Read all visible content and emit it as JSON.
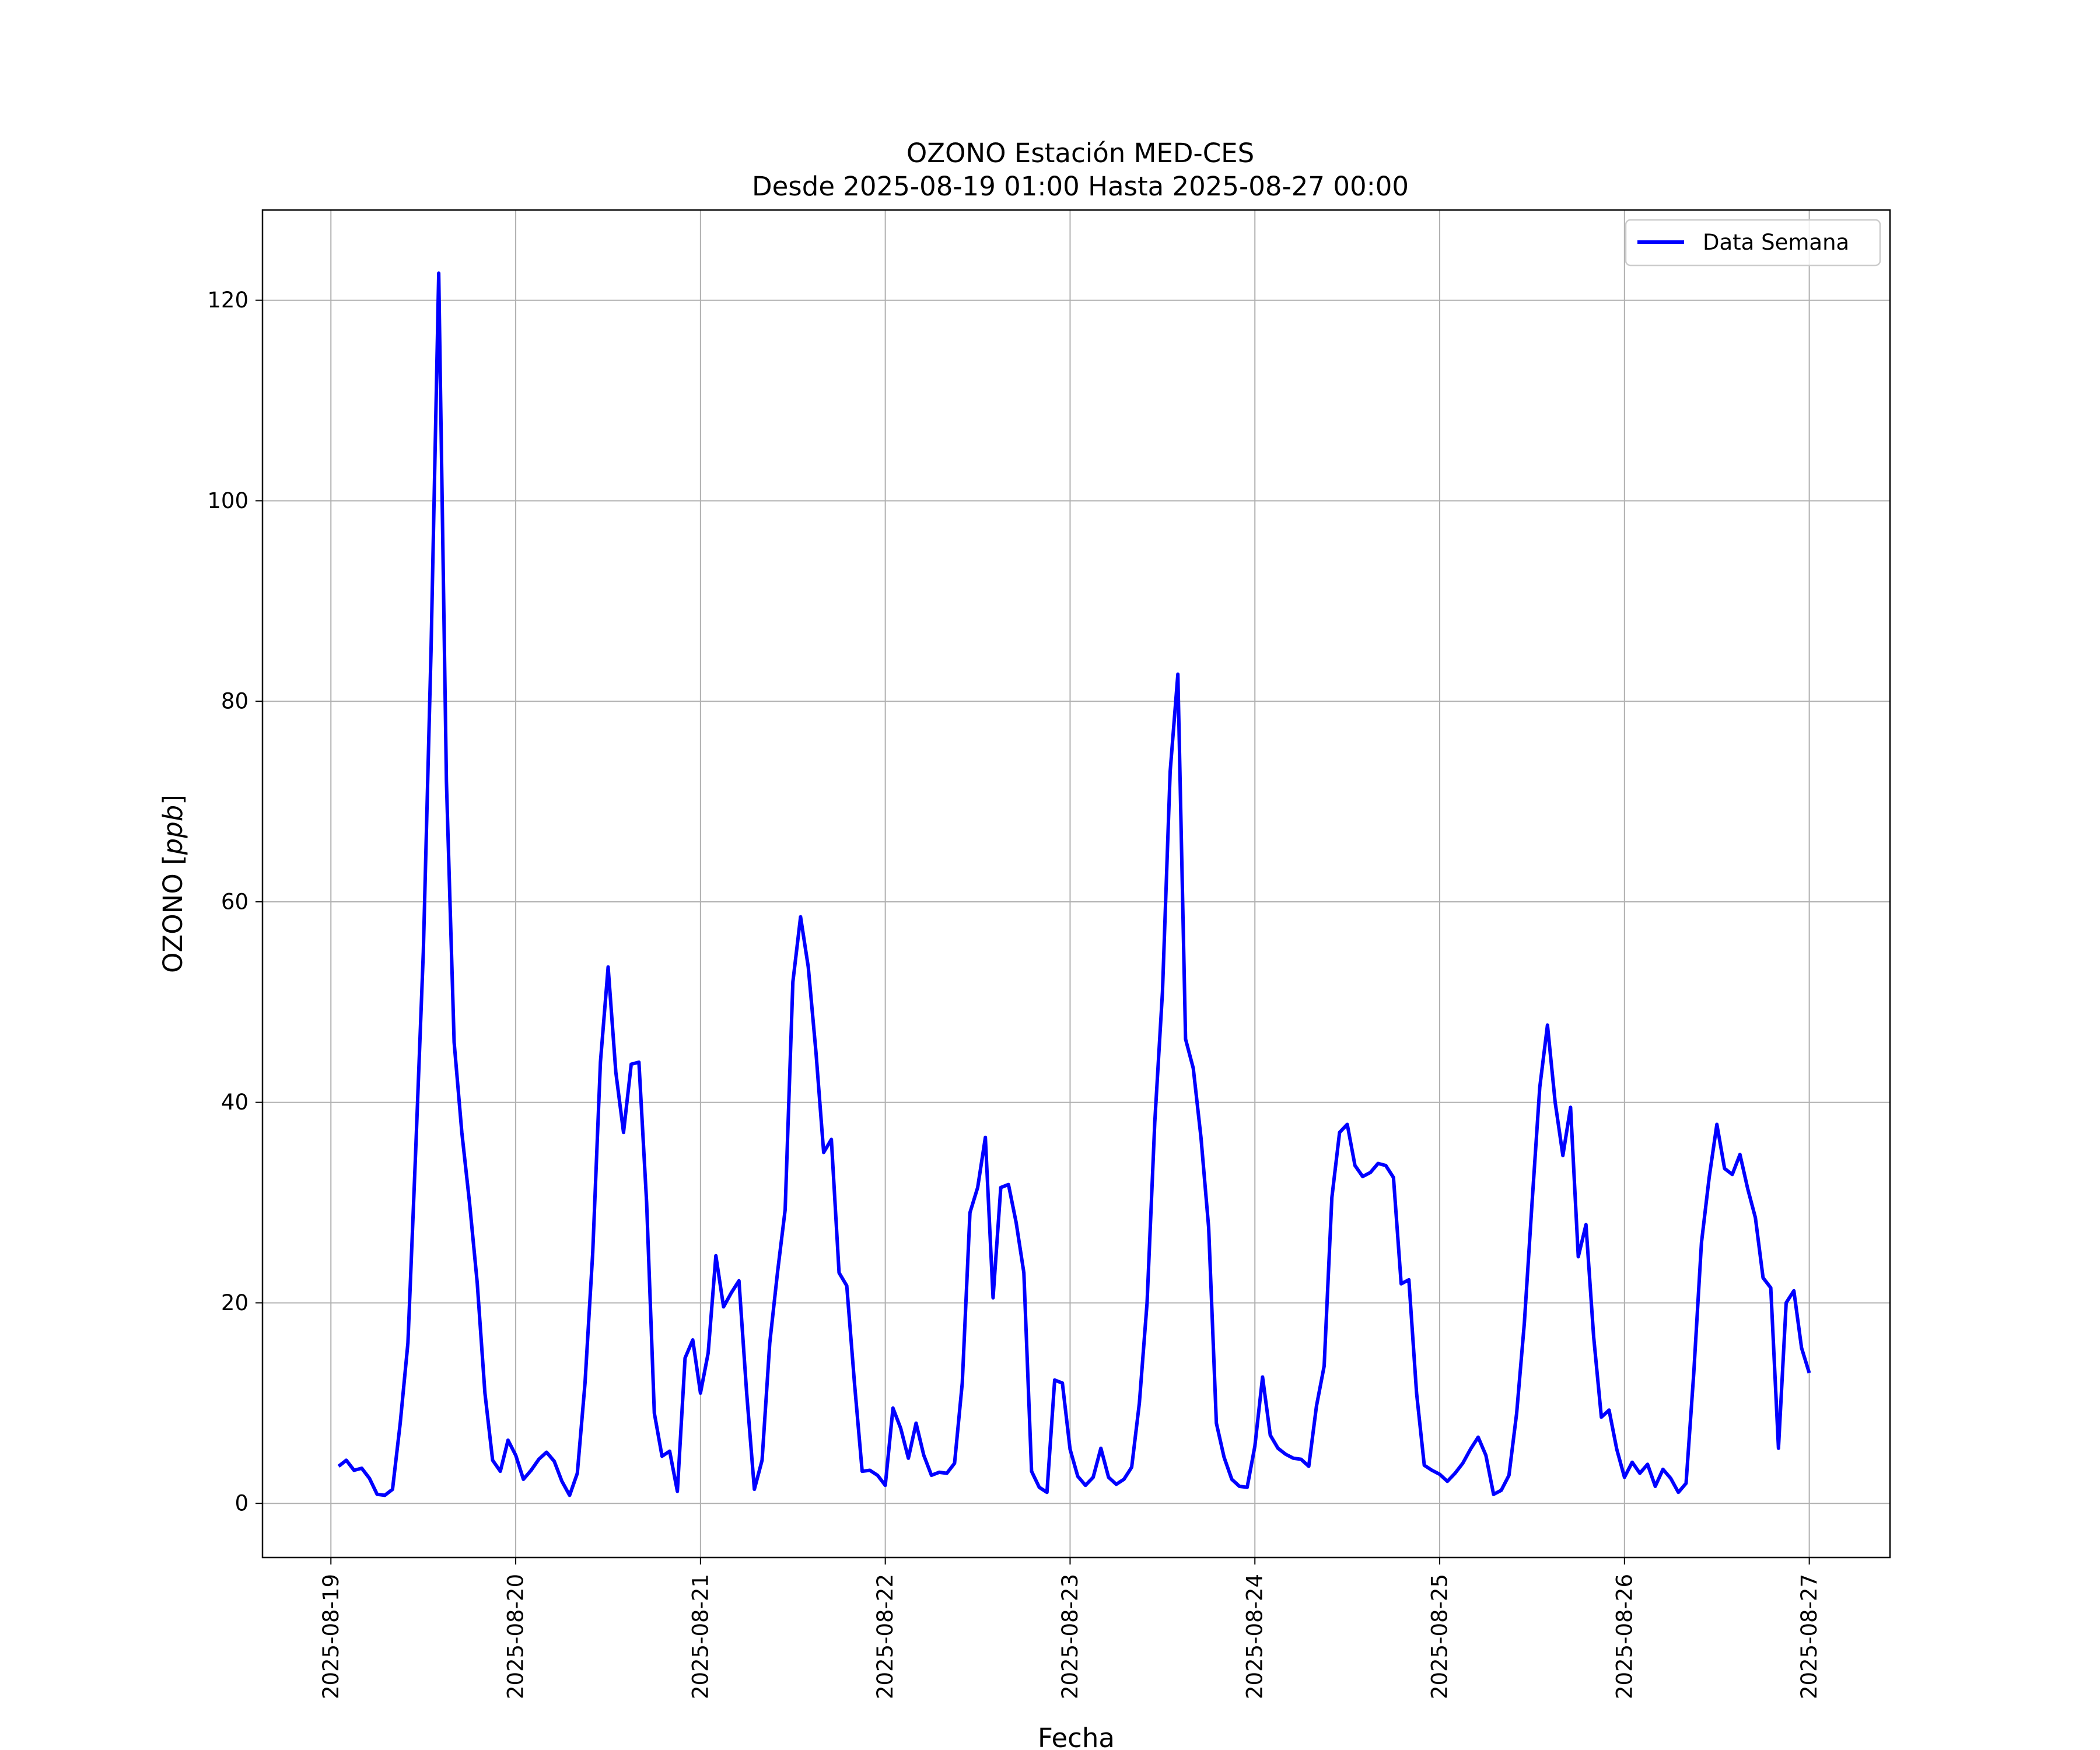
{
  "chart_data": {
    "type": "line",
    "title": "OZONO Estación MED-CES",
    "subtitle": "Desde 2025-08-19 01:00 Hasta 2025-08-27 00:00",
    "xlabel": "Fecha",
    "ylabel": "OZONO [ppb]",
    "xlim": [
      "2025-08-18 15:07",
      "2025-08-27 10:29"
    ],
    "ylim": [
      -5.4,
      129.0
    ],
    "grid": true,
    "legend_position": "top-right",
    "x_ticks": [
      "2025-08-19",
      "2025-08-20",
      "2025-08-21",
      "2025-08-22",
      "2025-08-23",
      "2025-08-24",
      "2025-08-25",
      "2025-08-26",
      "2025-08-27"
    ],
    "y_ticks": [
      0,
      20,
      40,
      60,
      80,
      100,
      120
    ],
    "series": [
      {
        "name": "Data Semana",
        "color": "#0000ff",
        "points": [
          [
            "2025-08-19 01:00",
            3.7
          ],
          [
            "2025-08-19 02:00",
            4.3
          ],
          [
            "2025-08-19 03:00",
            3.3
          ],
          [
            "2025-08-19 04:00",
            3.5
          ],
          [
            "2025-08-19 05:00",
            2.5
          ],
          [
            "2025-08-19 06:00",
            0.9
          ],
          [
            "2025-08-19 07:00",
            0.8
          ],
          [
            "2025-08-19 08:00",
            1.4
          ],
          [
            "2025-08-19 09:00",
            8.0
          ],
          [
            "2025-08-19 10:00",
            16.0
          ],
          [
            "2025-08-19 11:00",
            35.0
          ],
          [
            "2025-08-19 12:00",
            55.0
          ],
          [
            "2025-08-19 13:00",
            85.0
          ],
          [
            "2025-08-19 14:00",
            122.7
          ],
          [
            "2025-08-19 15:00",
            72.0
          ],
          [
            "2025-08-19 16:00",
            46.0
          ],
          [
            "2025-08-19 17:00",
            37.0
          ],
          [
            "2025-08-19 18:00",
            30.0
          ],
          [
            "2025-08-19 19:00",
            22.0
          ],
          [
            "2025-08-19 20:00",
            11.0
          ],
          [
            "2025-08-19 21:00",
            4.3
          ],
          [
            "2025-08-19 22:00",
            3.2
          ],
          [
            "2025-08-19 23:00",
            6.3
          ],
          [
            "2025-08-20 00:00",
            4.8
          ],
          [
            "2025-08-20 01:00",
            2.4
          ],
          [
            "2025-08-20 02:00",
            3.3
          ],
          [
            "2025-08-20 03:00",
            4.4
          ],
          [
            "2025-08-20 04:00",
            5.1
          ],
          [
            "2025-08-20 05:00",
            4.2
          ],
          [
            "2025-08-20 06:00",
            2.2
          ],
          [
            "2025-08-20 07:00",
            0.8
          ],
          [
            "2025-08-20 08:00",
            3.0
          ],
          [
            "2025-08-20 09:00",
            12.0
          ],
          [
            "2025-08-20 10:00",
            25.0
          ],
          [
            "2025-08-20 11:00",
            44.0
          ],
          [
            "2025-08-20 12:00",
            53.5
          ],
          [
            "2025-08-20 13:00",
            43.0
          ],
          [
            "2025-08-20 14:00",
            37.0
          ],
          [
            "2025-08-20 15:00",
            43.8
          ],
          [
            "2025-08-20 16:00",
            44.0
          ],
          [
            "2025-08-20 17:00",
            30.0
          ],
          [
            "2025-08-20 18:00",
            9.0
          ],
          [
            "2025-08-20 19:00",
            4.7
          ],
          [
            "2025-08-20 20:00",
            5.2
          ],
          [
            "2025-08-20 21:00",
            1.2
          ],
          [
            "2025-08-20 22:00",
            14.5
          ],
          [
            "2025-08-20 23:00",
            16.3
          ],
          [
            "2025-08-21 00:00",
            11.0
          ],
          [
            "2025-08-21 01:00",
            15.0
          ],
          [
            "2025-08-21 02:00",
            24.7
          ],
          [
            "2025-08-21 03:00",
            19.6
          ],
          [
            "2025-08-21 04:00",
            21.0
          ],
          [
            "2025-08-21 05:00",
            22.2
          ],
          [
            "2025-08-21 06:00",
            11.0
          ],
          [
            "2025-08-21 07:00",
            1.4
          ],
          [
            "2025-08-21 08:00",
            4.3
          ],
          [
            "2025-08-21 09:00",
            16.0
          ],
          [
            "2025-08-21 10:00",
            23.0
          ],
          [
            "2025-08-21 11:00",
            29.3
          ],
          [
            "2025-08-21 12:00",
            52.0
          ],
          [
            "2025-08-21 13:00",
            58.5
          ],
          [
            "2025-08-21 14:00",
            53.5
          ],
          [
            "2025-08-21 15:00",
            45.0
          ],
          [
            "2025-08-21 16:00",
            35.0
          ],
          [
            "2025-08-21 17:00",
            36.3
          ],
          [
            "2025-08-21 18:00",
            23.0
          ],
          [
            "2025-08-21 19:00",
            21.7
          ],
          [
            "2025-08-21 20:00",
            12.0
          ],
          [
            "2025-08-21 21:00",
            3.2
          ],
          [
            "2025-08-21 22:00",
            3.3
          ],
          [
            "2025-08-21 23:00",
            2.8
          ],
          [
            "2025-08-22 00:00",
            1.8
          ],
          [
            "2025-08-22 01:00",
            9.5
          ],
          [
            "2025-08-22 02:00",
            7.5
          ],
          [
            "2025-08-22 03:00",
            4.5
          ],
          [
            "2025-08-22 04:00",
            8.0
          ],
          [
            "2025-08-22 05:00",
            4.8
          ],
          [
            "2025-08-22 06:00",
            2.8
          ],
          [
            "2025-08-22 07:00",
            3.1
          ],
          [
            "2025-08-22 08:00",
            3.0
          ],
          [
            "2025-08-22 09:00",
            4.0
          ],
          [
            "2025-08-22 10:00",
            12.0
          ],
          [
            "2025-08-22 11:00",
            29.0
          ],
          [
            "2025-08-22 12:00",
            31.5
          ],
          [
            "2025-08-22 13:00",
            36.5
          ],
          [
            "2025-08-22 14:00",
            20.5
          ],
          [
            "2025-08-22 15:00",
            31.5
          ],
          [
            "2025-08-22 16:00",
            31.8
          ],
          [
            "2025-08-22 17:00",
            28.0
          ],
          [
            "2025-08-22 18:00",
            23.0
          ],
          [
            "2025-08-22 19:00",
            3.2
          ],
          [
            "2025-08-22 20:00",
            1.6
          ],
          [
            "2025-08-22 21:00",
            1.1
          ],
          [
            "2025-08-22 22:00",
            12.3
          ],
          [
            "2025-08-22 23:00",
            12.0
          ],
          [
            "2025-08-23 00:00",
            5.4
          ],
          [
            "2025-08-23 01:00",
            2.7
          ],
          [
            "2025-08-23 02:00",
            1.8
          ],
          [
            "2025-08-23 03:00",
            2.6
          ],
          [
            "2025-08-23 04:00",
            5.5
          ],
          [
            "2025-08-23 05:00",
            2.6
          ],
          [
            "2025-08-23 06:00",
            1.9
          ],
          [
            "2025-08-23 07:00",
            2.4
          ],
          [
            "2025-08-23 08:00",
            3.6
          ],
          [
            "2025-08-23 09:00",
            10.0
          ],
          [
            "2025-08-23 10:00",
            20.0
          ],
          [
            "2025-08-23 11:00",
            38.0
          ],
          [
            "2025-08-23 12:00",
            51.0
          ],
          [
            "2025-08-23 13:00",
            73.0
          ],
          [
            "2025-08-23 14:00",
            82.7
          ],
          [
            "2025-08-23 15:00",
            46.3
          ],
          [
            "2025-08-23 16:00",
            43.4
          ],
          [
            "2025-08-23 17:00",
            36.5
          ],
          [
            "2025-08-23 18:00",
            27.5
          ],
          [
            "2025-08-23 19:00",
            8.0
          ],
          [
            "2025-08-23 20:00",
            4.6
          ],
          [
            "2025-08-23 21:00",
            2.4
          ],
          [
            "2025-08-23 22:00",
            1.7
          ],
          [
            "2025-08-23 23:00",
            1.6
          ],
          [
            "2025-08-24 00:00",
            5.7
          ],
          [
            "2025-08-24 01:00",
            12.6
          ],
          [
            "2025-08-24 02:00",
            6.8
          ],
          [
            "2025-08-24 03:00",
            5.5
          ],
          [
            "2025-08-24 04:00",
            4.9
          ],
          [
            "2025-08-24 05:00",
            4.5
          ],
          [
            "2025-08-24 06:00",
            4.4
          ],
          [
            "2025-08-24 07:00",
            3.7
          ],
          [
            "2025-08-24 08:00",
            9.7
          ],
          [
            "2025-08-24 09:00",
            13.7
          ],
          [
            "2025-08-24 10:00",
            30.5
          ],
          [
            "2025-08-24 11:00",
            37.0
          ],
          [
            "2025-08-24 12:00",
            37.8
          ],
          [
            "2025-08-24 13:00",
            33.7
          ],
          [
            "2025-08-24 14:00",
            32.6
          ],
          [
            "2025-08-24 15:00",
            33.0
          ],
          [
            "2025-08-24 16:00",
            33.9
          ],
          [
            "2025-08-24 17:00",
            33.7
          ],
          [
            "2025-08-24 18:00",
            32.5
          ],
          [
            "2025-08-24 19:00",
            21.9
          ],
          [
            "2025-08-24 20:00",
            22.3
          ],
          [
            "2025-08-24 21:00",
            11.0
          ],
          [
            "2025-08-24 22:00",
            3.8
          ],
          [
            "2025-08-24 23:00",
            3.3
          ],
          [
            "2025-08-25 00:00",
            2.9
          ],
          [
            "2025-08-25 01:00",
            2.2
          ],
          [
            "2025-08-25 02:00",
            3.0
          ],
          [
            "2025-08-25 03:00",
            4.0
          ],
          [
            "2025-08-25 04:00",
            5.4
          ],
          [
            "2025-08-25 05:00",
            6.6
          ],
          [
            "2025-08-25 06:00",
            4.8
          ],
          [
            "2025-08-25 07:00",
            0.9
          ],
          [
            "2025-08-25 08:00",
            1.3
          ],
          [
            "2025-08-25 09:00",
            2.8
          ],
          [
            "2025-08-25 10:00",
            9.0
          ],
          [
            "2025-08-25 11:00",
            18.0
          ],
          [
            "2025-08-25 12:00",
            30.0
          ],
          [
            "2025-08-25 13:00",
            41.5
          ],
          [
            "2025-08-25 14:00",
            47.7
          ],
          [
            "2025-08-25 15:00",
            40.0
          ],
          [
            "2025-08-25 16:00",
            34.7
          ],
          [
            "2025-08-25 17:00",
            39.5
          ],
          [
            "2025-08-25 18:00",
            24.6
          ],
          [
            "2025-08-25 19:00",
            27.8
          ],
          [
            "2025-08-25 20:00",
            16.6
          ],
          [
            "2025-08-25 21:00",
            8.6
          ],
          [
            "2025-08-25 22:00",
            9.3
          ],
          [
            "2025-08-25 23:00",
            5.4
          ],
          [
            "2025-08-26 00:00",
            2.6
          ],
          [
            "2025-08-26 01:00",
            4.1
          ],
          [
            "2025-08-26 02:00",
            3.0
          ],
          [
            "2025-08-26 03:00",
            3.9
          ],
          [
            "2025-08-26 04:00",
            1.7
          ],
          [
            "2025-08-26 05:00",
            3.4
          ],
          [
            "2025-08-26 06:00",
            2.5
          ],
          [
            "2025-08-26 07:00",
            1.1
          ],
          [
            "2025-08-26 08:00",
            2.0
          ],
          [
            "2025-08-26 09:00",
            13.0
          ],
          [
            "2025-08-26 10:00",
            26.0
          ],
          [
            "2025-08-26 11:00",
            32.5
          ],
          [
            "2025-08-26 12:00",
            37.8
          ],
          [
            "2025-08-26 13:00",
            33.4
          ],
          [
            "2025-08-26 14:00",
            32.8
          ],
          [
            "2025-08-26 15:00",
            34.8
          ],
          [
            "2025-08-26 16:00",
            31.4
          ],
          [
            "2025-08-26 17:00",
            28.5
          ],
          [
            "2025-08-26 18:00",
            22.5
          ],
          [
            "2025-08-26 19:00",
            21.5
          ],
          [
            "2025-08-26 20:00",
            5.5
          ],
          [
            "2025-08-26 21:00",
            20.0
          ],
          [
            "2025-08-26 22:00",
            21.2
          ],
          [
            "2025-08-26 23:00",
            15.5
          ],
          [
            "2025-08-27 00:00",
            13.0
          ]
        ]
      }
    ]
  }
}
